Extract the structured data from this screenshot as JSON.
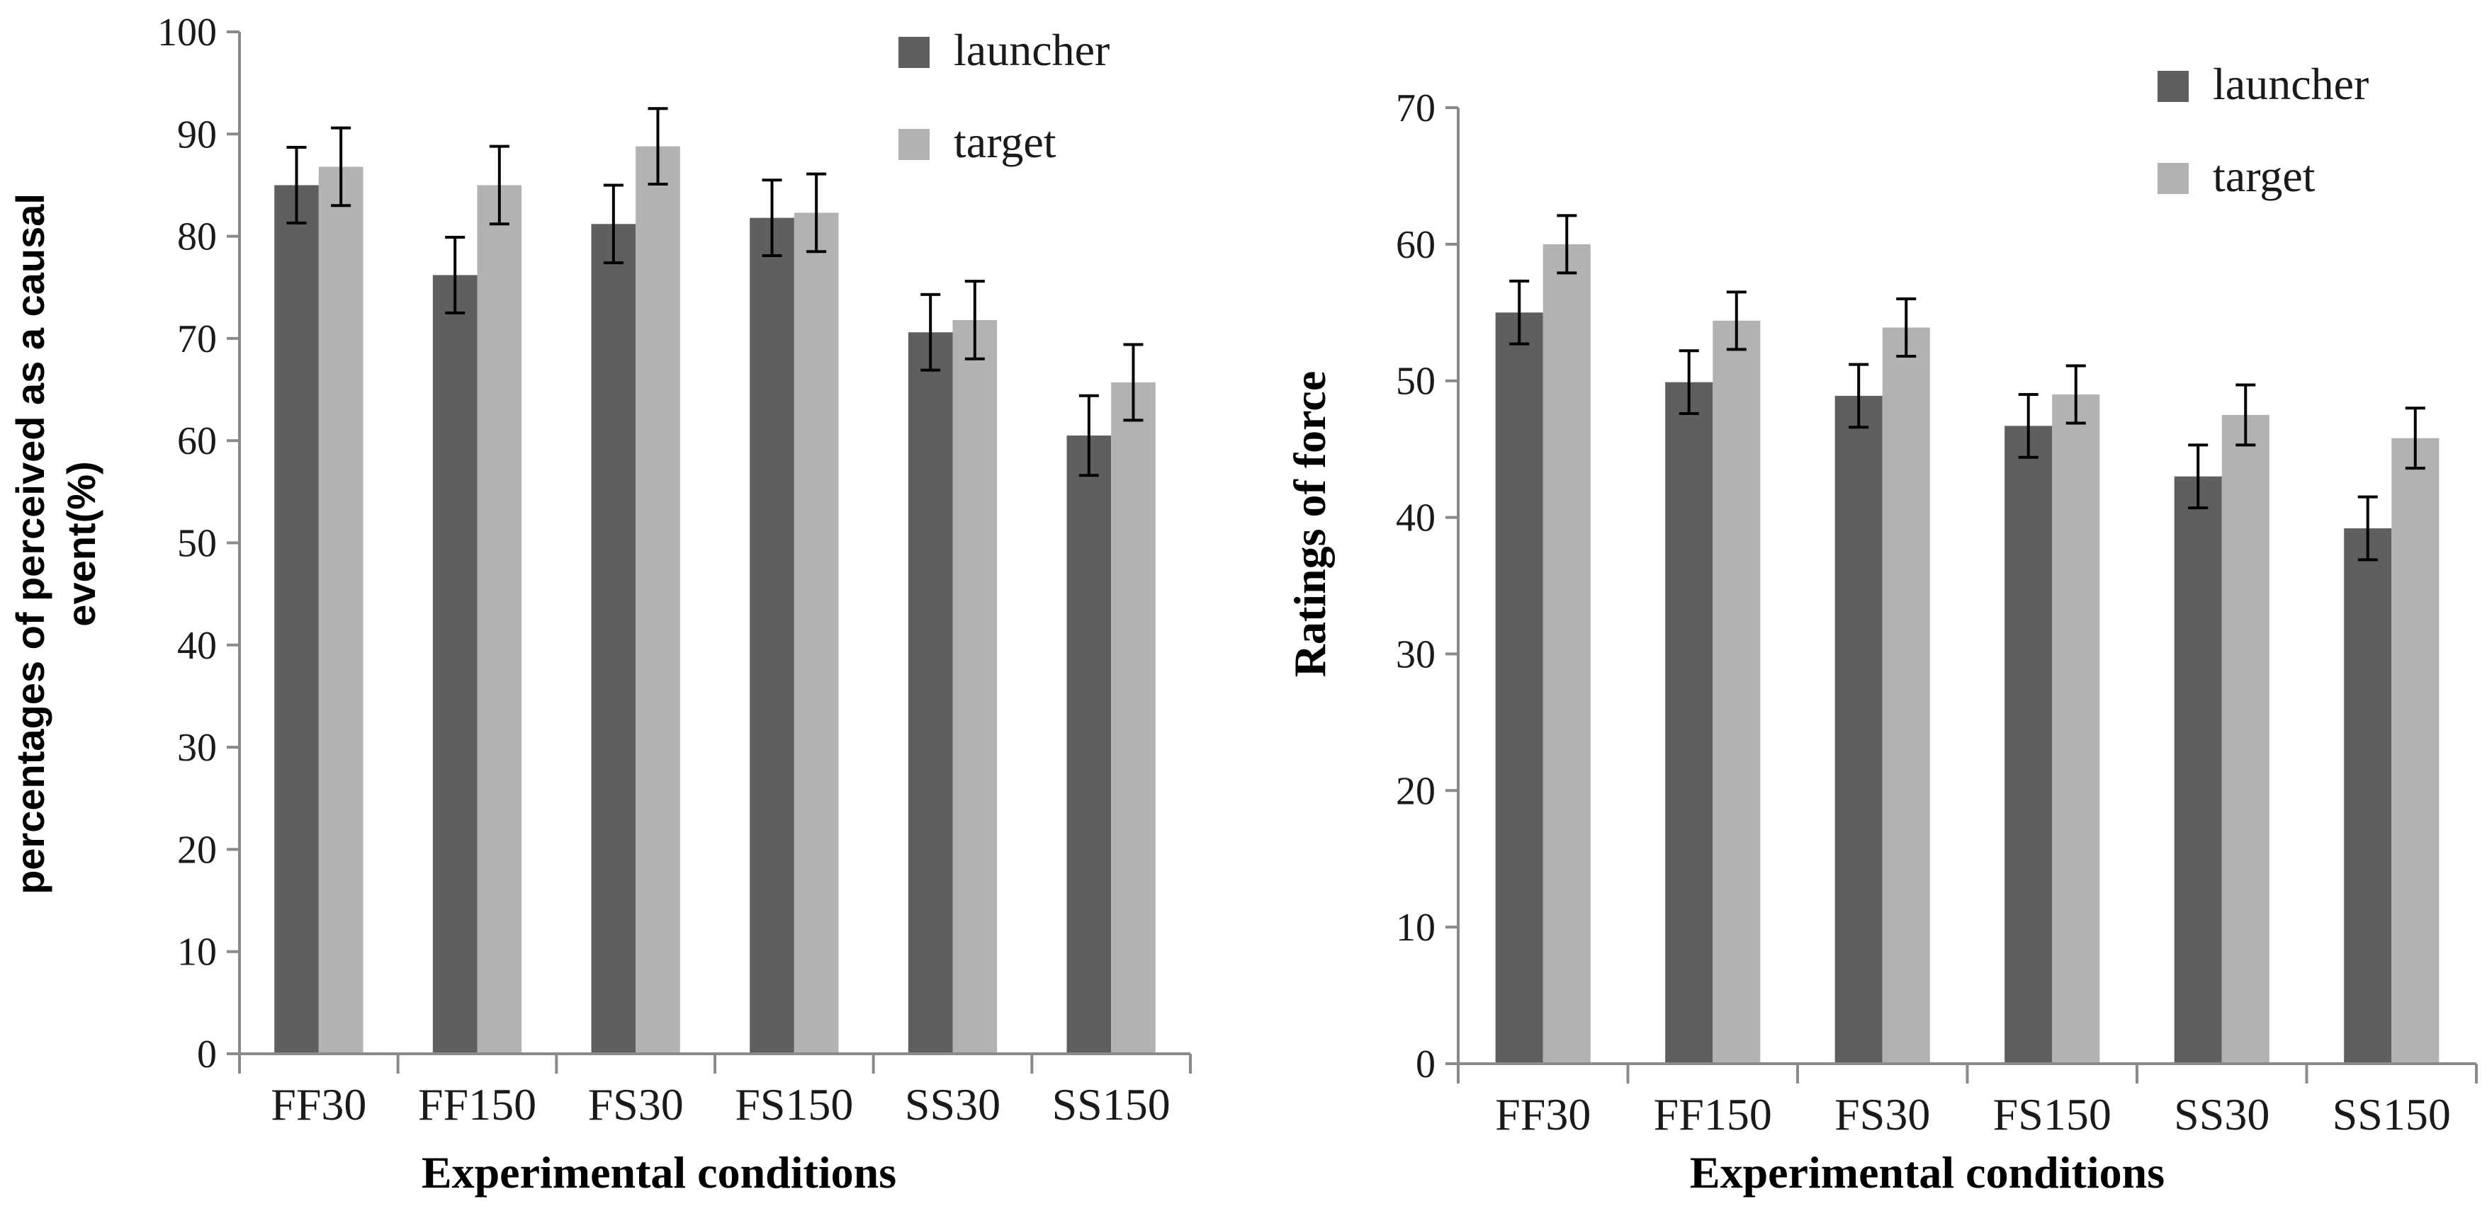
{
  "colors": {
    "launcher": "#5f5f5f",
    "target": "#b2b2b2",
    "axis": "#8a8a8a",
    "errorbar": "#000000"
  },
  "chart_data": [
    {
      "type": "bar",
      "categories": [
        "FF30",
        "FF150",
        "FS30",
        "FS150",
        "SS30",
        "SS150"
      ],
      "series": [
        {
          "name": "launcher",
          "values": [
            85,
            76.2,
            81.2,
            81.8,
            70.6,
            60.5
          ],
          "error": [
            3.7,
            3.7,
            3.8,
            3.7,
            3.7,
            3.9
          ]
        },
        {
          "name": "target",
          "values": [
            86.8,
            85,
            88.8,
            82.3,
            71.8,
            65.7
          ],
          "error": [
            3.8,
            3.8,
            3.7,
            3.8,
            3.8,
            3.7
          ]
        }
      ],
      "ylim": [
        0,
        100
      ],
      "yticks": [
        "0",
        "10",
        "20",
        "30",
        "40",
        "50",
        "60",
        "70",
        "80",
        "90",
        "100"
      ],
      "xlabel": "Experimental conditions",
      "ylabel_line1": "percentages of perceived as a causal",
      "ylabel_line2": "event(%)",
      "legend": [
        "launcher",
        "target"
      ],
      "legend_position": "top-right"
    },
    {
      "type": "bar",
      "categories": [
        "FF30",
        "FF150",
        "FS30",
        "FS150",
        "SS30",
        "SS150"
      ],
      "series": [
        {
          "name": "launcher",
          "values": [
            55,
            49.9,
            48.9,
            46.7,
            43,
            39.2
          ],
          "error": [
            2.3,
            2.3,
            2.3,
            2.3,
            2.3,
            2.3
          ]
        },
        {
          "name": "target",
          "values": [
            60,
            54.4,
            53.9,
            49,
            47.5,
            45.8
          ],
          "error": [
            2.1,
            2.1,
            2.1,
            2.1,
            2.2,
            2.2
          ]
        }
      ],
      "ylim": [
        0,
        70
      ],
      "yticks": [
        "0",
        "10",
        "20",
        "30",
        "40",
        "50",
        "60",
        "70"
      ],
      "xlabel": "Experimental conditions",
      "ylabel": "Ratings of force",
      "legend": [
        "launcher",
        "target"
      ],
      "legend_position": "top-right"
    }
  ]
}
